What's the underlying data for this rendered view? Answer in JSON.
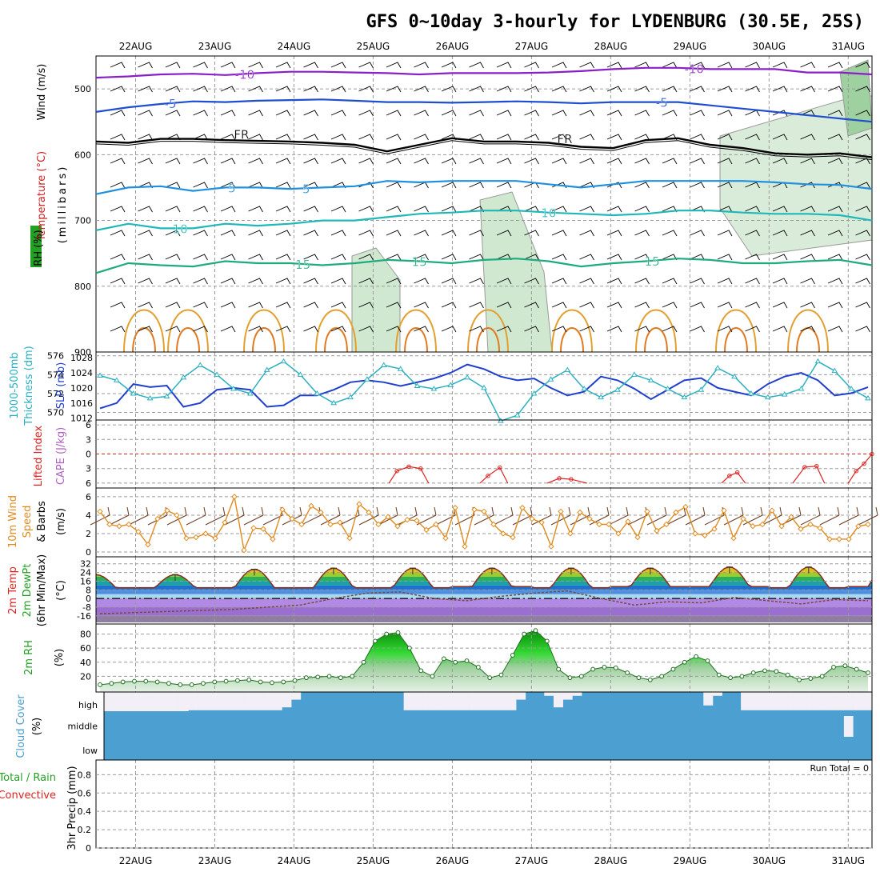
{
  "title": "GFS 0~10day 3-hourly for LYDENBURG (30.5E, 25S)",
  "dates": [
    "22AUG",
    "23AUG",
    "24AUG",
    "25AUG",
    "26AUG",
    "27AUG",
    "28AUG",
    "29AUG",
    "30AUG",
    "31AUG"
  ],
  "run_total": "Run Total = 0",
  "panel_labels": {
    "upper": [
      "Wind (m/s)",
      "Temperature (°C)",
      "(millibars)",
      "RH (%)"
    ],
    "slp": [
      "1000-500mb",
      "Thickness (dm)",
      "SLP (mb)"
    ],
    "cape": [
      "Lifted Index",
      "CAPE (J/kg)"
    ],
    "wind10": [
      "10m Wind",
      "Speed",
      "& Barbs",
      "(m/s)"
    ],
    "temp2m": [
      "2m Temp",
      "2m DewPt",
      "(6hr Min/Max)",
      "(°C)"
    ],
    "rh2m": [
      "2m RH",
      "(%)"
    ],
    "cloud": [
      "Cloud Cover",
      "(%)"
    ],
    "precip": [
      "Total / Rain",
      "Convective",
      "3hr Precip (mm)"
    ]
  },
  "colors": {
    "wind_label": "#000000",
    "temperature_label": "#cc2222",
    "rh_label": "#22a022",
    "thickness": "#2ab0c0",
    "slp": "#1f3fcc",
    "lifted": "#dd2222",
    "cape": "#b060c0",
    "wind10": "#e08a1e",
    "rh2m": "#22a022",
    "cloud": "#4b9fd1",
    "precip_total": "#22a022",
    "precip_conv": "#dd2222"
  },
  "chart_data": [
    {
      "type": "contour",
      "name": "upper",
      "y_axis": {
        "label": "millibars",
        "ticks": [
          500,
          600,
          700,
          800,
          900
        ],
        "range": [
          450,
          900
        ]
      },
      "isotherm_labels": [
        "-10",
        "-10",
        "-5",
        "-5",
        "FR",
        "FR",
        "5",
        "5",
        "10",
        "10",
        "15",
        "15",
        "15",
        "10",
        "10",
        "10"
      ],
      "isotherms_hpa": {
        "-10": [
          483,
          481,
          478,
          477,
          479,
          476,
          474,
          474,
          475,
          476,
          478,
          476,
          476,
          476,
          475,
          473,
          470,
          468,
          468,
          470,
          470,
          470,
          475,
          475,
          478
        ],
        "-5": [
          535,
          528,
          523,
          519,
          520,
          518,
          517,
          516,
          518,
          520,
          520,
          521,
          520,
          519,
          520,
          522,
          520,
          520,
          520,
          525,
          530,
          535,
          540,
          545,
          550
        ],
        "FR": [
          580,
          582,
          576,
          576,
          578,
          579,
          580,
          582,
          585,
          595,
          585,
          575,
          580,
          580,
          582,
          588,
          590,
          578,
          575,
          585,
          590,
          598,
          600,
          598,
          604
        ],
        "5": [
          660,
          650,
          648,
          655,
          650,
          650,
          652,
          650,
          648,
          640,
          642,
          640,
          640,
          640,
          645,
          650,
          645,
          640,
          640,
          640,
          640,
          642,
          645,
          646,
          652
        ],
        "10": [
          715,
          705,
          712,
          712,
          705,
          708,
          705,
          700,
          700,
          695,
          690,
          688,
          685,
          685,
          688,
          690,
          692,
          690,
          685,
          685,
          688,
          690,
          690,
          692,
          700
        ],
        "15": [
          780,
          765,
          768,
          770,
          762,
          765,
          765,
          768,
          765,
          760,
          762,
          765,
          760,
          758,
          762,
          770,
          765,
          762,
          758,
          760,
          765,
          765,
          762,
          760,
          768
        ]
      }
    },
    {
      "type": "line",
      "name": "slp_thickness",
      "y_left": {
        "label": "1000-500mb Thickness (dm)",
        "ticks": [
          570,
          572,
          574,
          576
        ]
      },
      "y_right": {
        "label": "SLP (mb)",
        "ticks": [
          1012,
          1016,
          1020,
          1024,
          1028
        ]
      },
      "series": [
        {
          "name": "1000-500mb Thickness (dm)",
          "values": [
            573.9,
            573.4,
            572.0,
            571.5,
            571.7,
            573.7,
            575.0,
            574.0,
            572.5,
            572.0,
            574.5,
            575.4,
            574.0,
            572.0,
            571.0,
            571.6,
            573.5,
            575.0,
            574.6,
            572.8,
            572.5,
            572.9,
            573.7,
            572.6,
            569.1,
            569.7,
            572.0,
            573.5,
            574.5,
            572.5,
            571.6,
            572.4,
            574.0,
            573.4,
            572.5,
            571.6,
            572.4,
            574.7,
            573.8,
            572.0,
            571.6,
            571.9,
            572.5,
            575.4,
            574.4,
            572.5,
            571.5
          ]
        },
        {
          "name": "SLP (mb)",
          "values": [
            1014.6,
            1016.0,
            1021.0,
            1020.2,
            1020.6,
            1015.0,
            1016.0,
            1019.5,
            1020.0,
            1019.5,
            1015.0,
            1015.4,
            1018.0,
            1018.0,
            1019.5,
            1021.5,
            1022.0,
            1021.5,
            1020.5,
            1021.5,
            1022.5,
            1024.0,
            1026.2,
            1025.0,
            1023.0,
            1022.0,
            1022.5,
            1020.0,
            1018.0,
            1019.0,
            1023.0,
            1022.0,
            1019.8,
            1017.0,
            1019.5,
            1022.0,
            1022.6,
            1020.0,
            1019.0,
            1018.0,
            1021.0,
            1023.0,
            1024.0,
            1022.0,
            1018.0,
            1018.6,
            1020.2
          ]
        }
      ]
    },
    {
      "type": "line",
      "name": "lifted_cape",
      "y_axis": {
        "label": "Lifted Index",
        "ticks": [
          -6,
          -3,
          0,
          3,
          6
        ]
      },
      "reference_line": 0,
      "series": [
        {
          "name": "Lifted Index",
          "segments": [
            {
              "x": [
                25.2,
                25.3,
                25.45,
                25.6,
                25.7
              ],
              "y": [
                6,
                3.5,
                2.6,
                3,
                6
              ]
            },
            {
              "x": [
                26.35,
                26.45,
                26.6,
                26.7
              ],
              "y": [
                6,
                4.5,
                2.8,
                6
              ]
            },
            {
              "x": [
                27.2,
                27.35,
                27.5,
                27.7
              ],
              "y": [
                6,
                5,
                5.2,
                6
              ]
            },
            {
              "x": [
                29.4,
                29.5,
                29.6,
                29.7
              ],
              "y": [
                6,
                4.5,
                3.8,
                6
              ]
            },
            {
              "x": [
                30.3,
                30.45,
                30.6,
                30.7
              ],
              "y": [
                6,
                2.7,
                2.5,
                6
              ]
            },
            {
              "x": [
                31.0,
                31.1,
                31.2,
                31.3
              ],
              "y": [
                6,
                3.5,
                2.0,
                0
              ]
            }
          ]
        }
      ]
    },
    {
      "type": "line",
      "name": "wind10m",
      "y_axis": {
        "label": "10m Wind Speed & Barbs (m/s)",
        "ticks": [
          0,
          2,
          4,
          6
        ]
      },
      "series": [
        {
          "name": "10m Wind Speed",
          "values": [
            4.4,
            3.0,
            2.8,
            3.0,
            2.2,
            0.8,
            3.6,
            4.5,
            4.0,
            1.5,
            1.6,
            2.0,
            1.5,
            3.2,
            6.0,
            0.2,
            2.6,
            2.5,
            1.4,
            4.6,
            3.6,
            3.0,
            5.0,
            4.3,
            3.0,
            3.2,
            1.5,
            5.2,
            4.3,
            3.0,
            3.8,
            2.8,
            3.5,
            3.4,
            2.4,
            3.0,
            1.5,
            4.8,
            0.6,
            4.6,
            4.4,
            3.0,
            2.0,
            1.6,
            4.8,
            3.6,
            3.2,
            0.6,
            4.4,
            2.0,
            4.3,
            3.6,
            3.0,
            3.0,
            2.0,
            3.3,
            1.6,
            4.4,
            2.3,
            3.0,
            4.3,
            4.9,
            2.0,
            1.8,
            2.5,
            4.5,
            1.5,
            3.6,
            2.8,
            3.0,
            4.5,
            2.8,
            3.8,
            2.5,
            3.0,
            2.6,
            1.4,
            1.4,
            1.4,
            2.8,
            3.0
          ]
        }
      ]
    },
    {
      "type": "area",
      "name": "temp2m",
      "y_axis": {
        "label": "2m Temp / 2m DewPt (°C)",
        "ticks": [
          -16,
          -8,
          0,
          8,
          16,
          24,
          32
        ]
      },
      "series": [
        {
          "name": "2m Temp",
          "max": [
            22,
            27,
            28,
            28,
            28,
            28,
            28,
            29,
            29,
            30
          ],
          "min": [
            10,
            10,
            10,
            10,
            11,
            10,
            11,
            11,
            10,
            11
          ]
        },
        {
          "name": "2m DewPt",
          "values": [
            -14,
            -13,
            -12,
            -11,
            -10,
            -8,
            -6,
            0,
            5,
            6,
            0,
            -2,
            2,
            5,
            7,
            0,
            -6,
            -3,
            -4,
            1,
            -2,
            -5,
            -1,
            -2
          ]
        }
      ]
    },
    {
      "type": "area",
      "name": "rh2m",
      "y_axis": {
        "label": "2m RH (%)",
        "ticks": [
          20,
          40,
          60,
          80
        ]
      },
      "series": [
        {
          "name": "2m RH",
          "values": [
            8,
            10,
            12,
            13,
            13,
            12,
            10,
            8,
            8,
            10,
            12,
            13,
            14,
            15,
            12,
            11,
            12,
            14,
            18,
            19,
            20,
            18,
            20,
            40,
            70,
            80,
            82,
            60,
            28,
            20,
            45,
            40,
            42,
            33,
            18,
            22,
            50,
            80,
            85,
            70,
            30,
            18,
            20,
            30,
            33,
            32,
            25,
            18,
            15,
            20,
            30,
            40,
            48,
            42,
            22,
            18,
            20,
            25,
            28,
            27,
            22,
            15,
            17,
            20,
            33,
            35,
            30,
            25
          ]
        }
      ]
    },
    {
      "type": "heatmap",
      "name": "cloud",
      "y_axis": {
        "label": "Cloud Cover (%)",
        "ticks": [
          "low",
          "middle",
          "high"
        ]
      },
      "series": [
        {
          "name": "high",
          "values": [
            0,
            0,
            0,
            0,
            0,
            0,
            0,
            0,
            0,
            5,
            5,
            5,
            5,
            5,
            5,
            5,
            5,
            5,
            5,
            20,
            60,
            100,
            100,
            100,
            100,
            100,
            100,
            100,
            100,
            100,
            100,
            100,
            5,
            5,
            5,
            5,
            5,
            5,
            5,
            5,
            5,
            5,
            5,
            5,
            60,
            100,
            100,
            80,
            20,
            60,
            80,
            100,
            100,
            100,
            100,
            100,
            100,
            100,
            100,
            100,
            100,
            100,
            100,
            100,
            30,
            80,
            100,
            100,
            5,
            5,
            5,
            5,
            5,
            5,
            5,
            5,
            5,
            5,
            5,
            5,
            5,
            5
          ]
        },
        {
          "name": "middle",
          "values": [
            0,
            0,
            0,
            0,
            0,
            0,
            0,
            0,
            0,
            0,
            0,
            0,
            0,
            0,
            0,
            0,
            0,
            0,
            0,
            0,
            0,
            0,
            0,
            0,
            0,
            0,
            0,
            0,
            0,
            0,
            0,
            0,
            0,
            0,
            0,
            0,
            0,
            0,
            0,
            0,
            0,
            0,
            0,
            0,
            0,
            0,
            0,
            0,
            0,
            0,
            0,
            0,
            0,
            0,
            0,
            0,
            0,
            0,
            0,
            0,
            0,
            0,
            0,
            0,
            0,
            0,
            0,
            0,
            0,
            0,
            0,
            0,
            0,
            0,
            0,
            0,
            0,
            0,
            0,
            100,
            0,
            0
          ]
        }
      ]
    },
    {
      "type": "bar",
      "name": "precip",
      "y_axis": {
        "label": "3hr Precip (mm)",
        "ticks": [
          0,
          0.2,
          0.4,
          0.6,
          0.8
        ]
      },
      "series": [
        {
          "name": "Total / Rain",
          "values": []
        },
        {
          "name": "Convective",
          "values": []
        }
      ]
    }
  ]
}
